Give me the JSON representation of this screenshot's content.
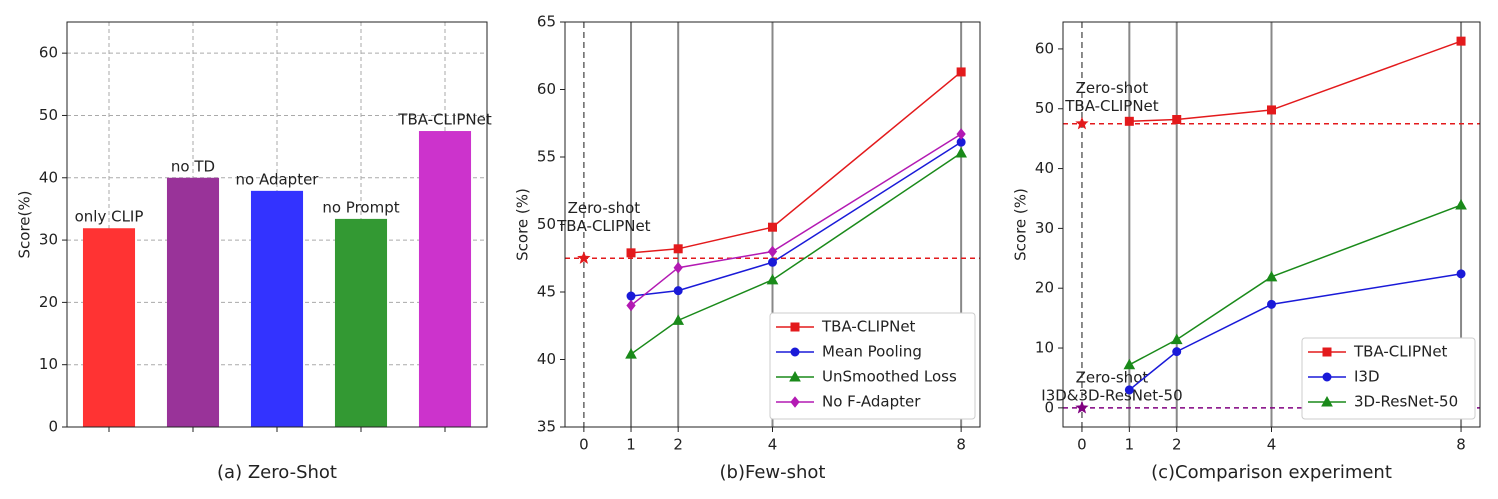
{
  "chart_data": [
    {
      "type": "bar",
      "caption": "(a) Zero-Shot",
      "ylabel": "Score(%)",
      "categories": [
        "only CLIP",
        "no TD",
        "no Adapter",
        "no Prompt",
        "TBA-CLIPNet"
      ],
      "values": [
        31.9,
        40,
        37.9,
        33.4,
        47.5
      ],
      "colors": [
        "#ff3333",
        "#993399",
        "#3333ff",
        "#339933",
        "#cc33cc"
      ],
      "label_colors": [
        "#dd1111",
        "#801a80",
        "#1a1aa8",
        "#228822",
        "#b31ab3"
      ],
      "ylim": [
        0,
        65
      ],
      "yticks": [
        0,
        10,
        20,
        30,
        40,
        50,
        60
      ],
      "grid": true
    },
    {
      "type": "line",
      "caption": "(b)Few-shot",
      "ylabel": "Score (%)",
      "x": [
        1,
        2,
        4,
        8
      ],
      "xlim": [
        -0.4,
        8.4
      ],
      "xticks": [
        0,
        1,
        2,
        4,
        8
      ],
      "ylim": [
        35,
        65
      ],
      "yticks": [
        35,
        40,
        45,
        50,
        55,
        60,
        65
      ],
      "grid": "x",
      "legend": "lower right",
      "series": [
        {
          "name": "TBA-CLIPNet",
          "color": "#e31a1c",
          "marker": "s",
          "values": [
            47.9,
            48.2,
            49.8,
            61.3
          ]
        },
        {
          "name": "Mean Pooling",
          "color": "#1a1ad8",
          "marker": "o",
          "values": [
            44.7,
            45.1,
            47.2,
            56.1
          ]
        },
        {
          "name": "UnSmoothed Loss",
          "color": "#1a8a1a",
          "marker": "^",
          "values": [
            40.4,
            42.9,
            45.9,
            55.3
          ]
        },
        {
          "name": "No F-Adapter",
          "color": "#b31ab3",
          "marker": "D",
          "values": [
            44.0,
            46.8,
            48.0,
            56.7
          ]
        }
      ],
      "annotations": [
        {
          "text": [
            "Zero-shot",
            "TBA-CLIPNet"
          ],
          "x": 0,
          "y": 47.5,
          "color": "#e31a1c"
        }
      ]
    },
    {
      "type": "line",
      "caption": "(c)Comparison experiment",
      "ylabel": "Score (%)",
      "x": [
        1,
        2,
        4,
        8
      ],
      "xlim": [
        -0.4,
        8.4
      ],
      "xticks": [
        0,
        1,
        2,
        4,
        8
      ],
      "ylim": [
        -3.2,
        64.5
      ],
      "yticks": [
        0,
        10,
        20,
        30,
        40,
        50,
        60
      ],
      "grid": "x",
      "legend": "lower right",
      "series": [
        {
          "name": "TBA-CLIPNet",
          "color": "#e31a1c",
          "marker": "s",
          "values": [
            47.9,
            48.2,
            49.8,
            61.3
          ]
        },
        {
          "name": "I3D",
          "color": "#1a1ad8",
          "marker": "o",
          "values": [
            3.0,
            9.4,
            17.3,
            22.4
          ]
        },
        {
          "name": "3D-ResNet-50",
          "color": "#1a8a1a",
          "marker": "^",
          "values": [
            7.2,
            11.4,
            21.9,
            33.9
          ]
        }
      ],
      "annotations": [
        {
          "text": [
            "Zero-shot",
            "TBA-CLIPNet"
          ],
          "x": 0,
          "y": 47.5,
          "color": "#e31a1c"
        },
        {
          "text": [
            "Zero-shot",
            "I3D&3D-ResNet-50"
          ],
          "x": 0,
          "y": 0,
          "color": "#800080"
        }
      ]
    }
  ]
}
